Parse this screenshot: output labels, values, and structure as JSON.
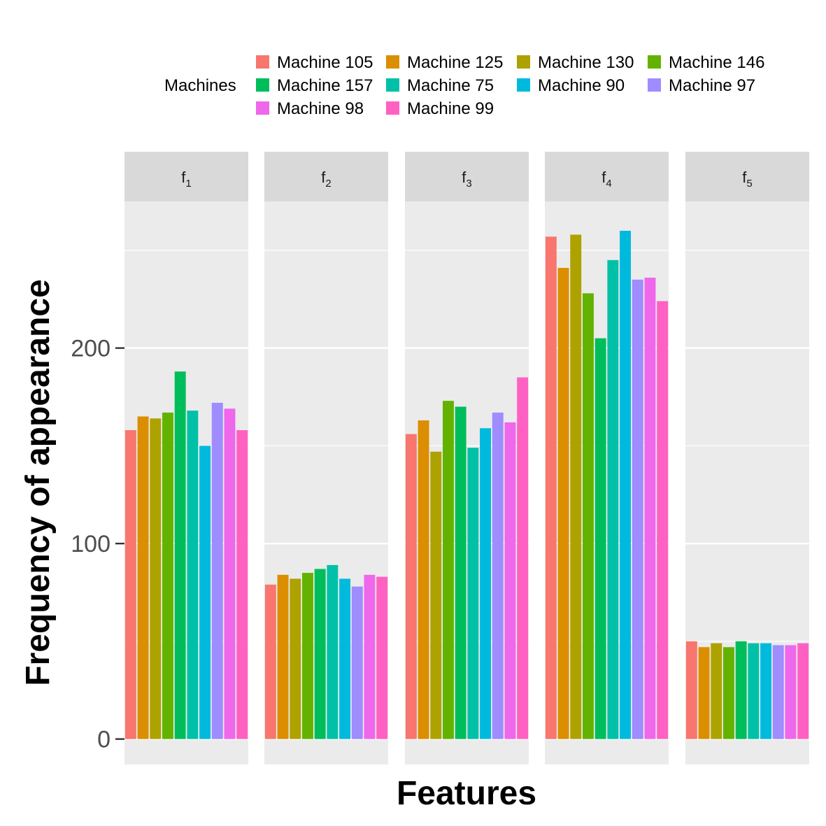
{
  "chart_data": {
    "type": "bar",
    "xlabel": "Features",
    "ylabel": "Frequency of appearance",
    "ylim": [
      -13,
      275
    ],
    "yticks": [
      0,
      100,
      200
    ],
    "grid": true,
    "legend": {
      "title": "Machines",
      "position": "top"
    },
    "facets": [
      {
        "label": "f",
        "subscript": "1"
      },
      {
        "label": "f",
        "subscript": "2"
      },
      {
        "label": "f",
        "subscript": "3"
      },
      {
        "label": "f",
        "subscript": "4"
      },
      {
        "label": "f",
        "subscript": "5"
      }
    ],
    "series": [
      {
        "name": "Machine 105",
        "color": "#F8766D",
        "values": [
          158,
          79,
          156,
          257,
          50
        ]
      },
      {
        "name": "Machine 125",
        "color": "#DB8E00",
        "values": [
          165,
          84,
          163,
          241,
          47
        ]
      },
      {
        "name": "Machine 130",
        "color": "#AEA200",
        "values": [
          164,
          82,
          147,
          258,
          49
        ]
      },
      {
        "name": "Machine 146",
        "color": "#64B200",
        "values": [
          167,
          85,
          173,
          228,
          47
        ]
      },
      {
        "name": "Machine 157",
        "color": "#00BD5C",
        "values": [
          188,
          87,
          170,
          205,
          50
        ]
      },
      {
        "name": "Machine 75",
        "color": "#00C1A7",
        "values": [
          168,
          89,
          149,
          245,
          49
        ]
      },
      {
        "name": "Machine 90",
        "color": "#00BADE",
        "values": [
          150,
          82,
          159,
          260,
          49
        ]
      },
      {
        "name": "Machine 97",
        "color": "#9F8CFF",
        "values": [
          172,
          78,
          167,
          235,
          48
        ]
      },
      {
        "name": "Machine 98",
        "color": "#EF67EB",
        "values": [
          169,
          84,
          162,
          236,
          48
        ]
      },
      {
        "name": "Machine 99",
        "color": "#FF61C3",
        "values": [
          158,
          83,
          185,
          224,
          49
        ]
      }
    ]
  }
}
